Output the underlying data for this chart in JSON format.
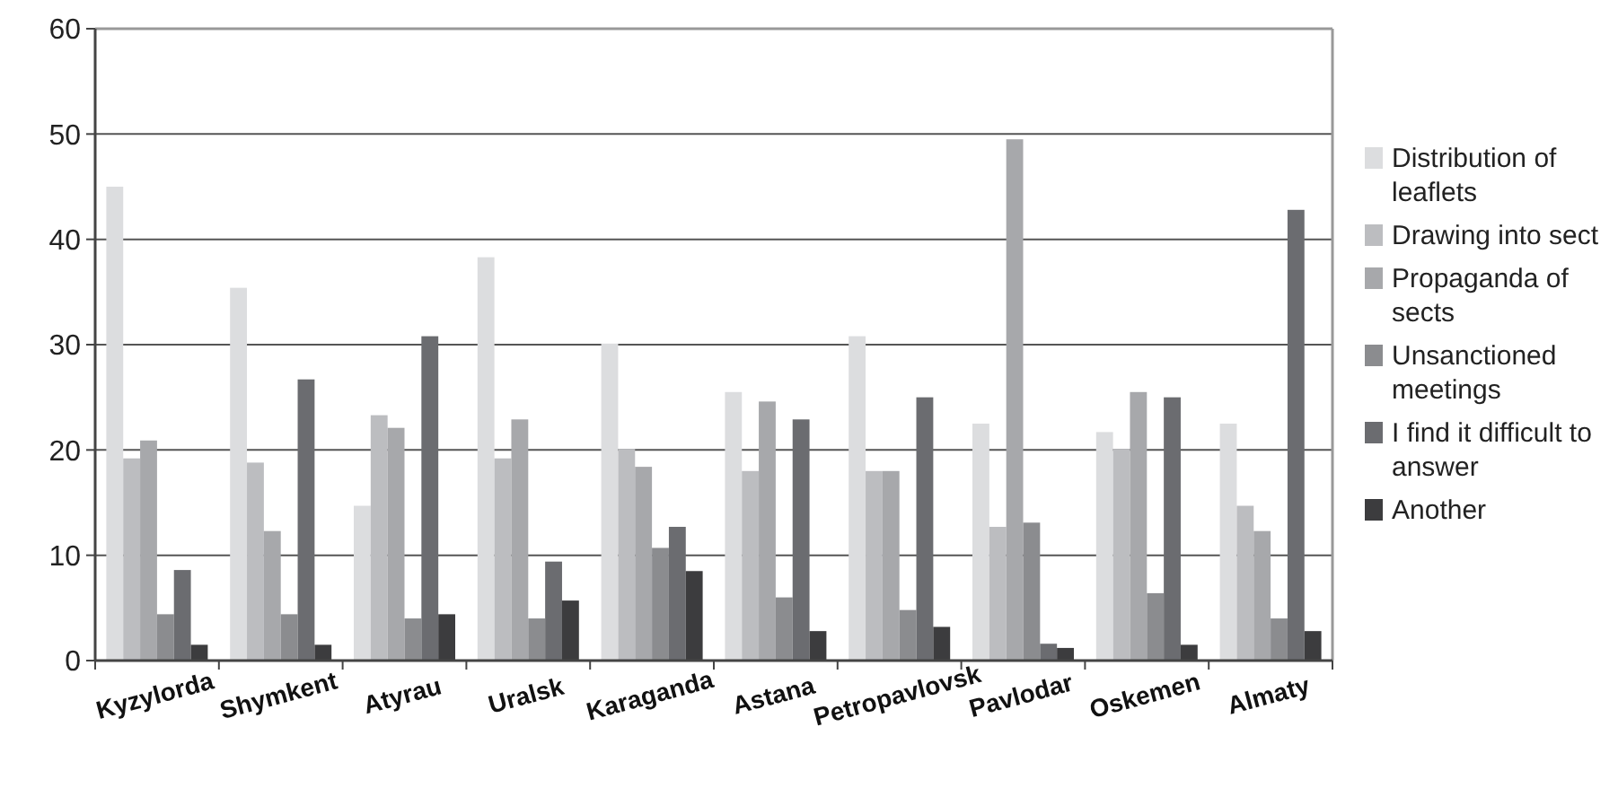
{
  "chart_data": {
    "type": "bar",
    "categories": [
      "Kyzylorda",
      "Shymkent",
      "Atyrau",
      "Uralsk",
      "Karaganda",
      "Astana",
      "Petropavlovsk",
      "Pavlodar",
      "Oskemen",
      "Almaty"
    ],
    "series": [
      {
        "name": "Distribution of leaflets",
        "color": "#dcdddf",
        "values": [
          45,
          35.4,
          14.7,
          38.3,
          30.1,
          25.5,
          30.8,
          22.5,
          21.7,
          22.5
        ]
      },
      {
        "name": "Drawing into sect",
        "color": "#bcbdc0",
        "values": [
          19.2,
          18.8,
          23.3,
          19.2,
          20.1,
          18,
          18,
          12.7,
          20.1,
          14.7
        ]
      },
      {
        "name": "Propaganda of sects",
        "color": "#a7a8ab",
        "values": [
          20.9,
          12.3,
          22.1,
          22.9,
          18.4,
          24.6,
          18,
          49.5,
          25.5,
          12.3
        ]
      },
      {
        "name": "Unsanctioned meetings",
        "color": "#8b8c8f",
        "values": [
          4.4,
          4.4,
          4,
          4,
          10.7,
          6,
          4.8,
          13.1,
          6.4,
          4
        ]
      },
      {
        "name": "I find it difficult to answer",
        "color": "#6b6c70",
        "values": [
          8.6,
          26.7,
          30.8,
          9.4,
          12.7,
          22.9,
          25,
          1.6,
          25,
          42.8
        ]
      },
      {
        "name": "Another",
        "color": "#3c3c3e",
        "values": [
          1.5,
          1.5,
          4.4,
          5.7,
          8.5,
          2.8,
          3.2,
          1.2,
          1.5,
          2.8
        ]
      }
    ],
    "ylim": [
      0,
      60
    ],
    "yticks": [
      0,
      10,
      20,
      30,
      40,
      50,
      60
    ],
    "grid": "y",
    "legend": "right"
  }
}
